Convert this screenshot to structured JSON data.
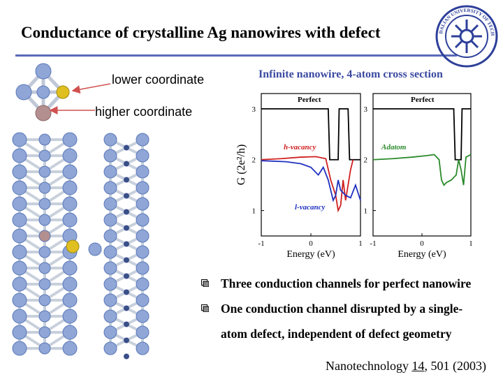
{
  "slide": {
    "title": "Conductance of crystalline Ag nanowires with defect",
    "accent_color": "#5a6bb8",
    "label_lower": "lower coordinate",
    "label_higher": "higher coordinate",
    "plot_caption": "Infinite nanowire, 4-atom cross section",
    "bullets": [
      "Three conduction channels for perfect nanowire",
      "One conduction channel disrupted by a single-",
      "atom defect, independent of defect geometry"
    ],
    "reference": {
      "journal": "Nanotechnology",
      "volume": "14",
      "rest": ", 501 (2003)"
    }
  },
  "logo": {
    "name": "Dalian University of Technology seal",
    "text": "DALIAN UNIVERSITY OF TECHNOLOGY",
    "color": "#2d3f9a"
  },
  "atom_colors": {
    "silver": "#8fa6d6",
    "defect_high": "#b48f8f",
    "defect_low": "#e0c020"
  },
  "chart_data": [
    {
      "type": "line",
      "panel": "left",
      "ylabel": "G (2e²/h)",
      "xlabel": "Energy (eV)",
      "xlim": [
        -1,
        1
      ],
      "ylim": [
        0.5,
        3.3
      ],
      "xticks": [
        "-1",
        "0",
        "1"
      ],
      "yticks": [
        "3",
        "2",
        "1"
      ],
      "annotations": [
        "Perfect",
        "h-vacancy",
        "l-vacancy"
      ],
      "series": [
        {
          "name": "Perfect",
          "color": "#000000",
          "x": [
            -1.0,
            0.35,
            0.38,
            0.55,
            0.57,
            0.75,
            0.78,
            1.0
          ],
          "y": [
            3.0,
            3.0,
            2.0,
            2.0,
            3.0,
            3.0,
            2.0,
            2.0
          ]
        },
        {
          "name": "h-vacancy",
          "color": "#d02020",
          "x": [
            -1.0,
            -0.6,
            -0.2,
            0.1,
            0.3,
            0.4,
            0.5,
            0.55,
            0.6,
            0.65,
            0.7,
            0.8,
            0.85
          ],
          "y": [
            2.0,
            2.02,
            2.05,
            2.06,
            2.02,
            1.6,
            1.3,
            1.0,
            1.1,
            1.6,
            1.2,
            1.8,
            2.0
          ]
        },
        {
          "name": "l-vacancy",
          "color": "#2030c0",
          "x": [
            -1.0,
            -0.5,
            -0.2,
            0.0,
            0.15,
            0.25,
            0.35,
            0.45,
            0.5,
            0.55,
            0.6,
            0.7,
            0.8,
            0.9,
            1.0
          ],
          "y": [
            1.98,
            1.96,
            1.92,
            1.85,
            1.7,
            1.85,
            1.6,
            1.2,
            1.3,
            1.6,
            1.4,
            1.3,
            1.25,
            1.5,
            1.2
          ]
        }
      ]
    },
    {
      "type": "line",
      "panel": "right",
      "xlabel": "Energy (eV)",
      "xlim": [
        -1,
        1
      ],
      "ylim": [
        0.5,
        3.3
      ],
      "xticks": [
        "-1",
        "0",
        "1"
      ],
      "yticks": [
        "3",
        "2",
        "1"
      ],
      "annotations": [
        "Perfect",
        "Adatom"
      ],
      "series": [
        {
          "name": "Perfect",
          "color": "#000000",
          "x": [
            -1.0,
            0.65,
            0.68,
            0.8,
            0.82,
            1.0
          ],
          "y": [
            3.0,
            3.0,
            2.0,
            2.0,
            3.0,
            3.0
          ]
        },
        {
          "name": "Adatom",
          "color": "#2a8a2a",
          "x": [
            -1.0,
            -0.6,
            -0.2,
            0.1,
            0.25,
            0.35,
            0.4,
            0.45,
            0.5,
            0.6,
            0.7,
            0.75,
            0.8,
            0.85,
            0.9,
            1.0
          ],
          "y": [
            2.0,
            2.02,
            2.05,
            2.08,
            2.1,
            2.0,
            1.6,
            1.5,
            1.55,
            1.6,
            1.7,
            2.0,
            1.8,
            1.5,
            2.05,
            2.1
          ]
        }
      ]
    }
  ]
}
